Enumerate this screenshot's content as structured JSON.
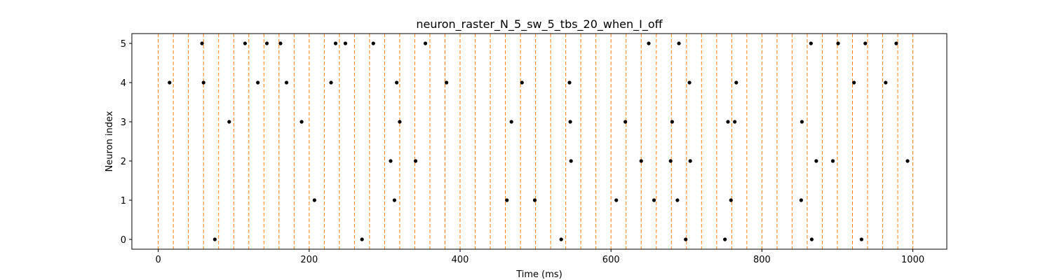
{
  "chart_data": {
    "type": "scatter",
    "title": "neuron_raster_N_5_sw_5_tbs_20_when_I_off",
    "xlabel": "Time (ms)",
    "ylabel": "Neuron index",
    "xlim": [
      -35,
      1045
    ],
    "ylim": [
      -0.25,
      5.25
    ],
    "xticks": [
      0,
      200,
      400,
      600,
      800,
      1000
    ],
    "yticks": [
      0,
      1,
      2,
      3,
      4,
      5
    ],
    "grid": false,
    "marker_color": "#000000",
    "bin_line_color": "#ff7f0e",
    "bin_boundaries": [
      0,
      20,
      40,
      60,
      80,
      100,
      120,
      140,
      160,
      180,
      200,
      220,
      240,
      260,
      280,
      300,
      320,
      340,
      360,
      380,
      400,
      420,
      440,
      460,
      480,
      500,
      520,
      540,
      560,
      580,
      600,
      620,
      640,
      660,
      680,
      700,
      720,
      740,
      760,
      780,
      800,
      820,
      840,
      860,
      880,
      900,
      920,
      940,
      960,
      980,
      1000
    ],
    "series": [
      {
        "neuron": 0,
        "spike_times": [
          75,
          270,
          534,
          699,
          751,
          866,
          932
        ]
      },
      {
        "neuron": 1,
        "spike_times": [
          207,
          313,
          462,
          499,
          607,
          657,
          688,
          759,
          852
        ]
      },
      {
        "neuron": 2,
        "spike_times": [
          308,
          341,
          547,
          640,
          679,
          705,
          872,
          894,
          993
        ]
      },
      {
        "neuron": 3,
        "spike_times": [
          94,
          190,
          320,
          468,
          546,
          619,
          681,
          755,
          764,
          853
        ]
      },
      {
        "neuron": 4,
        "spike_times": [
          15,
          60,
          132,
          170,
          229,
          316,
          382,
          482,
          545,
          704,
          766,
          922,
          964
        ]
      },
      {
        "neuron": 5,
        "spike_times": [
          58,
          115,
          144,
          162,
          235,
          248,
          285,
          354,
          650,
          690,
          865,
          901,
          937,
          978
        ]
      }
    ]
  }
}
